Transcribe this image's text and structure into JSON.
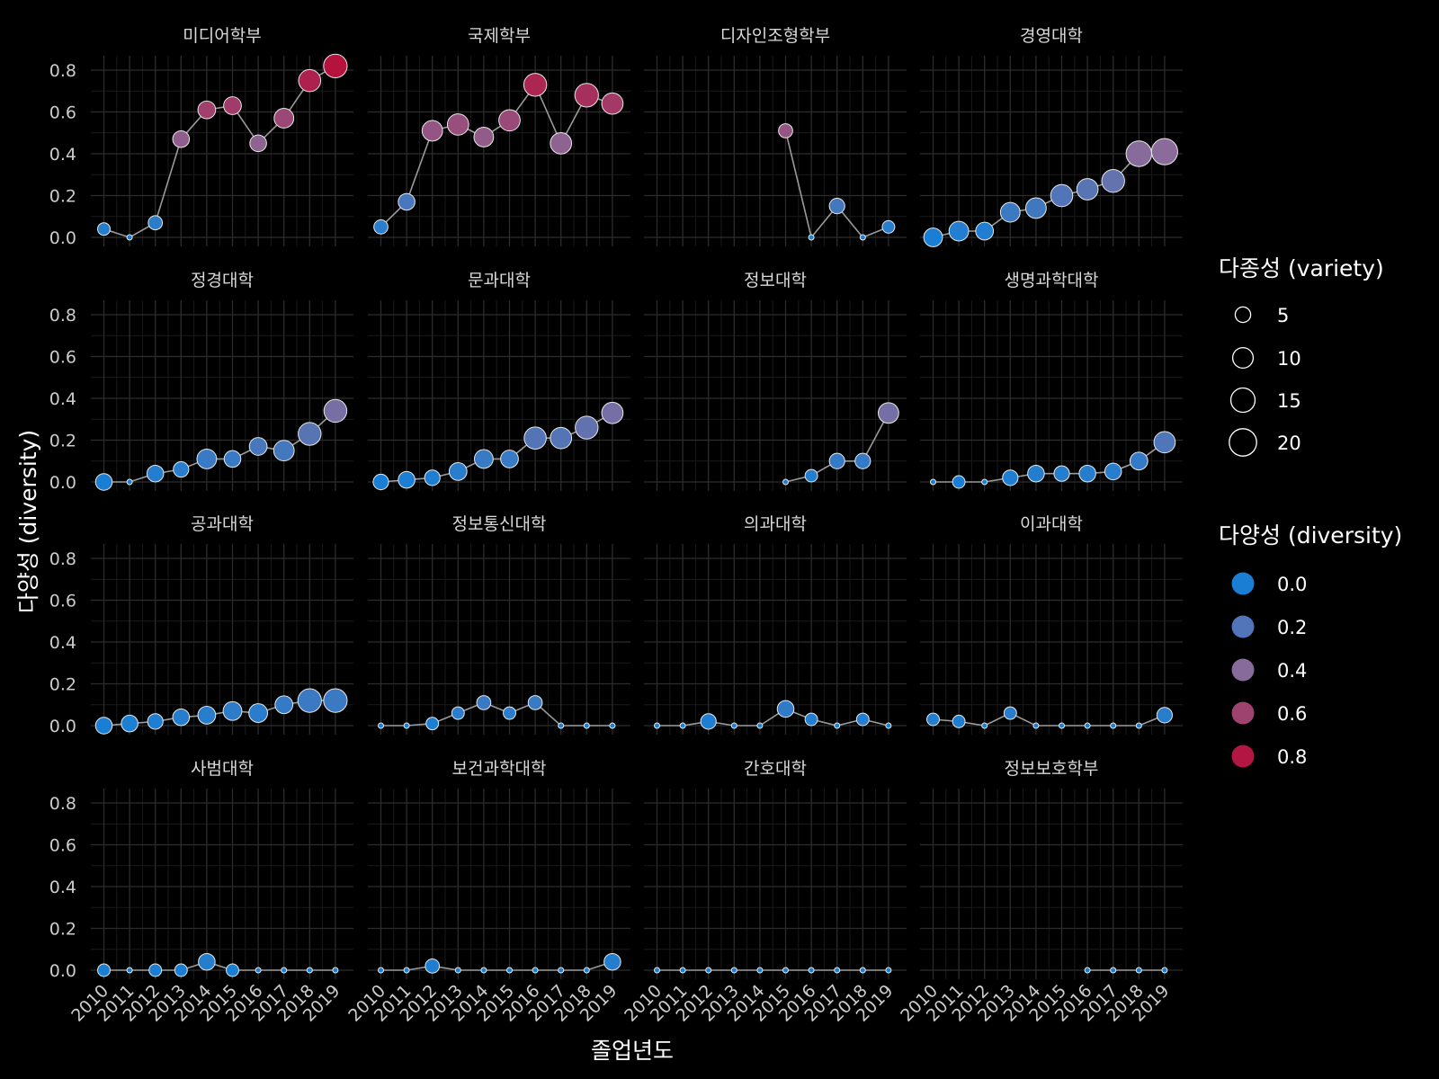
{
  "chart_data": {
    "type": "scatter",
    "xlabel": "졸업년도",
    "ylabel": "다양성 (diversity)",
    "ylim": [
      0,
      0.8
    ],
    "y_ticks": [
      "0.0",
      "0.2",
      "0.4",
      "0.6",
      "0.8"
    ],
    "x_ticks": [
      "2010",
      "2011",
      "2012",
      "2013",
      "2014",
      "2015",
      "2016",
      "2017",
      "2018",
      "2019"
    ],
    "grid": true,
    "layout": "facet 4x4",
    "legend_position": "right",
    "legend_size": {
      "title": "다종성 (variety)",
      "values": [
        5,
        10,
        15,
        20
      ],
      "labels": [
        "5",
        "10",
        "15",
        "20"
      ]
    },
    "legend_color": {
      "title": "다양성 (diversity)",
      "values": [
        0.0,
        0.2,
        0.4,
        0.6,
        0.8
      ],
      "labels": [
        "0.0",
        "0.2",
        "0.4",
        "0.6",
        "0.8"
      ],
      "low_color": "#1a7fd4",
      "mid_color": "#8a6b9a",
      "high_color": "#b5123e"
    },
    "line_color": "#9a9a9a",
    "point_stroke": "#e8e8e8",
    "facets": [
      {
        "name": "미디어학부",
        "x": [
          2010,
          2011,
          2012,
          2013,
          2014,
          2015,
          2016,
          2017,
          2018,
          2019
        ],
        "diversity": [
          0.04,
          0.0,
          0.07,
          0.47,
          0.61,
          0.63,
          0.45,
          0.57,
          0.75,
          0.82
        ],
        "variety": [
          3,
          1,
          4,
          6,
          7,
          7,
          6,
          9,
          12,
          14
        ]
      },
      {
        "name": "국제학부",
        "x": [
          2010,
          2011,
          2012,
          2013,
          2014,
          2015,
          2016,
          2017,
          2018,
          2019
        ],
        "diversity": [
          0.05,
          0.17,
          0.51,
          0.54,
          0.48,
          0.56,
          0.73,
          0.45,
          0.68,
          0.64
        ],
        "variety": [
          4,
          6,
          10,
          11,
          9,
          11,
          13,
          11,
          14,
          11
        ]
      },
      {
        "name": "디자인조형학부",
        "x": [
          2015,
          2016,
          2017,
          2018,
          2019
        ],
        "diversity": [
          0.51,
          0.0,
          0.15,
          0.0,
          0.05
        ],
        "variety": [
          4,
          1,
          5,
          1,
          3
        ]
      },
      {
        "name": "경영대학",
        "x": [
          2010,
          2011,
          2012,
          2013,
          2014,
          2015,
          2016,
          2017,
          2018,
          2019
        ],
        "diversity": [
          0.0,
          0.03,
          0.03,
          0.12,
          0.14,
          0.2,
          0.23,
          0.27,
          0.4,
          0.41
        ],
        "variety": [
          8,
          9,
          7,
          9,
          10,
          12,
          11,
          13,
          17,
          18
        ]
      },
      {
        "name": "정경대학",
        "x": [
          2010,
          2011,
          2012,
          2013,
          2014,
          2015,
          2016,
          2017,
          2018,
          2019
        ],
        "diversity": [
          0.0,
          0.0,
          0.04,
          0.06,
          0.11,
          0.11,
          0.17,
          0.15,
          0.23,
          0.34
        ],
        "variety": [
          6,
          1,
          6,
          5,
          9,
          6,
          7,
          10,
          13,
          13
        ]
      },
      {
        "name": "문과대학",
        "x": [
          2010,
          2011,
          2012,
          2013,
          2014,
          2015,
          2016,
          2017,
          2018,
          2019
        ],
        "diversity": [
          0.0,
          0.01,
          0.02,
          0.05,
          0.11,
          0.11,
          0.21,
          0.21,
          0.26,
          0.33
        ],
        "variety": [
          5,
          6,
          5,
          7,
          8,
          7,
          12,
          11,
          13,
          11
        ]
      },
      {
        "name": "정보대학",
        "x": [
          2015,
          2016,
          2017,
          2018,
          2019
        ],
        "diversity": [
          0.0,
          0.03,
          0.1,
          0.1,
          0.33
        ],
        "variety": [
          1,
          3,
          5,
          5,
          10
        ]
      },
      {
        "name": "생명과학대학",
        "x": [
          2010,
          2011,
          2012,
          2013,
          2014,
          2015,
          2016,
          2017,
          2018,
          2019
        ],
        "diversity": [
          0.0,
          0.0,
          0.0,
          0.02,
          0.04,
          0.04,
          0.04,
          0.05,
          0.1,
          0.19
        ],
        "variety": [
          1,
          3,
          1,
          5,
          6,
          5,
          6,
          6,
          7,
          11
        ]
      },
      {
        "name": "공과대학",
        "x": [
          2010,
          2011,
          2012,
          2013,
          2014,
          2015,
          2016,
          2017,
          2018,
          2019
        ],
        "diversity": [
          0.0,
          0.01,
          0.02,
          0.04,
          0.05,
          0.07,
          0.06,
          0.1,
          0.12,
          0.12
        ],
        "variety": [
          6,
          6,
          5,
          6,
          7,
          8,
          8,
          7,
          14,
          14
        ]
      },
      {
        "name": "정보통신대학",
        "x": [
          2010,
          2011,
          2012,
          2013,
          2014,
          2015,
          2016,
          2017,
          2018,
          2019
        ],
        "diversity": [
          0.0,
          0.0,
          0.01,
          0.06,
          0.11,
          0.06,
          0.11,
          0.0,
          0.0,
          0.0
        ],
        "variety": [
          1,
          1,
          3,
          3,
          4,
          3,
          4,
          1,
          1,
          1
        ]
      },
      {
        "name": "의과대학",
        "x": [
          2010,
          2011,
          2012,
          2013,
          2014,
          2015,
          2016,
          2017,
          2018,
          2019
        ],
        "diversity": [
          0.0,
          0.0,
          0.02,
          0.0,
          0.0,
          0.08,
          0.03,
          0.0,
          0.03,
          0.0
        ],
        "variety": [
          1,
          1,
          5,
          1,
          1,
          6,
          3,
          1,
          3,
          1
        ]
      },
      {
        "name": "이과대학",
        "x": [
          2010,
          2011,
          2012,
          2013,
          2014,
          2015,
          2016,
          2017,
          2018,
          2019
        ],
        "diversity": [
          0.03,
          0.02,
          0.0,
          0.06,
          0.0,
          0.0,
          0.0,
          0.0,
          0.0,
          0.05
        ],
        "variety": [
          3,
          3,
          1,
          3,
          1,
          1,
          1,
          1,
          1,
          5
        ]
      },
      {
        "name": "사범대학",
        "x": [
          2010,
          2011,
          2012,
          2013,
          2014,
          2015,
          2016,
          2017,
          2018,
          2019
        ],
        "diversity": [
          0.0,
          0.0,
          0.0,
          0.0,
          0.04,
          0.0,
          0.0,
          0.0,
          0.0,
          0.0
        ],
        "variety": [
          3,
          1,
          3,
          3,
          6,
          3,
          1,
          1,
          1,
          1
        ]
      },
      {
        "name": "보건과학대학",
        "x": [
          2010,
          2011,
          2012,
          2013,
          2014,
          2015,
          2016,
          2017,
          2018,
          2019
        ],
        "diversity": [
          0.0,
          0.0,
          0.02,
          0.0,
          0.0,
          0.0,
          0.0,
          0.0,
          0.0,
          0.04
        ],
        "variety": [
          1,
          1,
          4,
          1,
          1,
          1,
          1,
          1,
          1,
          6
        ]
      },
      {
        "name": "간호대학",
        "x": [
          2010,
          2011,
          2012,
          2013,
          2014,
          2015,
          2016,
          2017,
          2018,
          2019
        ],
        "diversity": [
          0.0,
          0.0,
          0.0,
          0.0,
          0.0,
          0.0,
          0.0,
          0.0,
          0.0,
          0.0
        ],
        "variety": [
          1,
          1,
          1,
          1,
          1,
          1,
          1,
          1,
          1,
          1
        ]
      },
      {
        "name": "정보보호학부",
        "x": [
          2016,
          2017,
          2018,
          2019
        ],
        "diversity": [
          0.0,
          0.0,
          0.0,
          0.0
        ],
        "variety": [
          1,
          1,
          1,
          1
        ]
      }
    ]
  }
}
